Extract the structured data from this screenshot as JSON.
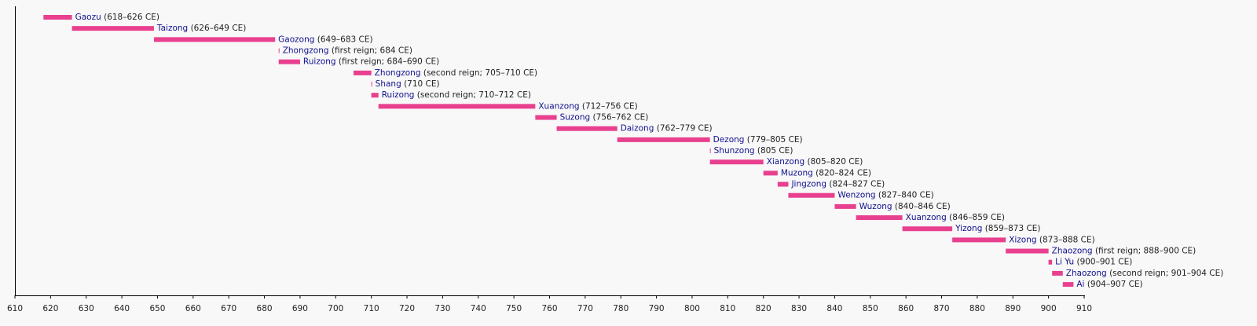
{
  "chart_data": {
    "type": "timeline",
    "categories": [
      "Gaozu",
      "Taizong",
      "Gaozong",
      "Zhongzong",
      "Ruizong",
      "Zhongzong",
      "Shang",
      "Ruizong",
      "Xuanzong",
      "Suzong",
      "Daizong",
      "Dezong",
      "Shunzong",
      "Xianzong",
      "Muzong",
      "Jingzong",
      "Wenzong",
      "Wuzong",
      "Xuanzong",
      "Yizong",
      "Xizong",
      "Zhaozong",
      "Li Yu",
      "Zhaozong",
      "Ai"
    ],
    "start": [
      618,
      626,
      649,
      684,
      684,
      705,
      710,
      710,
      712,
      756,
      762,
      779,
      805,
      805,
      820,
      824,
      827,
      840,
      846,
      859,
      873,
      888,
      900,
      901,
      904
    ],
    "end": [
      626,
      649,
      683,
      684,
      690,
      710,
      710,
      712,
      756,
      762,
      779,
      805,
      805,
      820,
      824,
      827,
      840,
      846,
      859,
      873,
      888,
      900,
      901,
      904,
      907
    ],
    "value_labels": [
      "(618–626 CE)",
      "(626–649 CE)",
      "(649–683 CE)",
      "(first reign; 684 CE)",
      "(first reign; 684–690 CE)",
      "(second reign; 705–710 CE)",
      "(710 CE)",
      "(second reign; 710–712 CE)",
      "(712–756 CE)",
      "(756–762 CE)",
      "(762–779 CE)",
      "(779–805 CE)",
      "(805 CE)",
      "(805–820 CE)",
      "(820–824 CE)",
      "(824–827 CE)",
      "(827–840 CE)",
      "(840–846 CE)",
      "(846–859 CE)",
      "(859–873 CE)",
      "(873–888 CE)",
      "(first reign; 888–900 CE)",
      "(900–901 CE)",
      "(second reign; 901–904 CE)",
      "(904–907 CE)"
    ],
    "color": "#e8408f",
    "xlim": [
      610,
      910
    ],
    "xticks": [
      610,
      620,
      630,
      640,
      650,
      660,
      670,
      680,
      690,
      700,
      710,
      720,
      730,
      740,
      750,
      760,
      770,
      780,
      790,
      800,
      810,
      820,
      830,
      840,
      850,
      860,
      870,
      880,
      890,
      900,
      910
    ]
  }
}
